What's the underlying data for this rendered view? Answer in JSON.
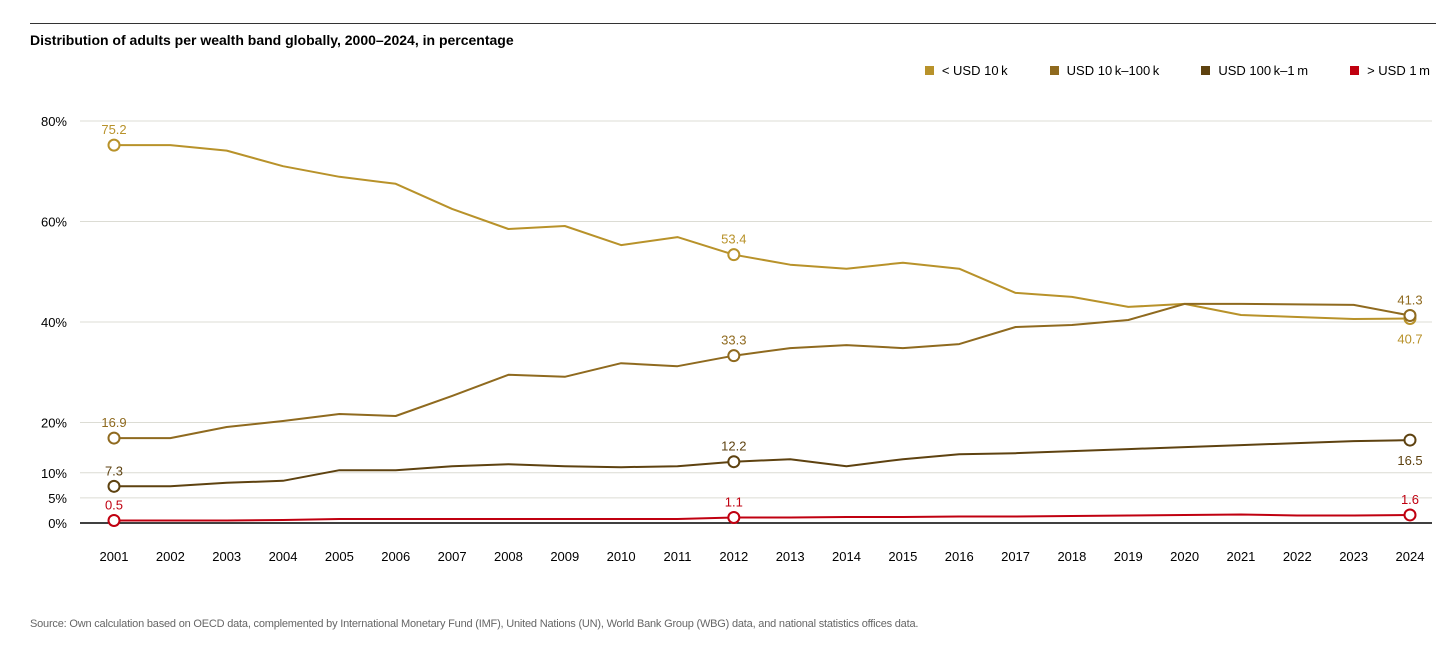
{
  "chart_data": {
    "type": "line",
    "title": "Distribution of adults per wealth band globally, 2000–2024, in percentage",
    "xlabel": "",
    "ylabel": "",
    "x": [
      2001,
      2002,
      2003,
      2004,
      2005,
      2006,
      2007,
      2008,
      2009,
      2010,
      2011,
      2012,
      2013,
      2014,
      2015,
      2016,
      2017,
      2018,
      2019,
      2020,
      2021,
      2022,
      2023,
      2024
    ],
    "ylim": [
      0,
      80
    ],
    "yticks": [
      0,
      5,
      10,
      20,
      40,
      60,
      80
    ],
    "ytick_labels": [
      "0%",
      "5%",
      "10%",
      "20%",
      "40%",
      "60%",
      "80%"
    ],
    "grid": true,
    "legend_position": "top-right",
    "series": [
      {
        "name": "< USD 10 k",
        "color": "#b8922a",
        "values": [
          75.2,
          75.2,
          74.1,
          71.0,
          68.9,
          67.5,
          62.5,
          58.5,
          59.1,
          55.3,
          56.9,
          53.4,
          51.4,
          50.6,
          51.8,
          50.6,
          45.8,
          45.0,
          43.0,
          43.6,
          41.4,
          41.0,
          40.6,
          40.7
        ],
        "labels": [
          {
            "index": 0,
            "text": "75.2",
            "pos": "above"
          },
          {
            "index": 11,
            "text": "53.4",
            "pos": "above"
          },
          {
            "index": 23,
            "text": "40.7",
            "pos": "below"
          }
        ]
      },
      {
        "name": "USD 10 k–100 k",
        "color": "#8f6a1f",
        "values": [
          16.9,
          16.9,
          19.1,
          20.3,
          21.7,
          21.3,
          25.3,
          29.5,
          29.1,
          31.8,
          31.2,
          33.3,
          34.8,
          35.4,
          34.8,
          35.6,
          39.0,
          39.4,
          40.4,
          43.6,
          43.6,
          43.5,
          43.4,
          41.3
        ],
        "labels": [
          {
            "index": 0,
            "text": "16.9",
            "pos": "above"
          },
          {
            "index": 11,
            "text": "33.3",
            "pos": "above"
          },
          {
            "index": 23,
            "text": "41.3",
            "pos": "above"
          }
        ]
      },
      {
        "name": "USD 100 k–1 m",
        "color": "#5e4210",
        "values": [
          7.3,
          7.3,
          8.0,
          8.4,
          10.5,
          10.5,
          11.3,
          11.7,
          11.3,
          11.1,
          11.3,
          12.2,
          12.7,
          11.3,
          12.7,
          13.7,
          13.9,
          14.3,
          14.7,
          15.1,
          15.5,
          15.9,
          16.3,
          16.5
        ],
        "labels": [
          {
            "index": 0,
            "text": "7.3",
            "pos": "above"
          },
          {
            "index": 11,
            "text": "12.2",
            "pos": "above"
          },
          {
            "index": 23,
            "text": "16.5",
            "pos": "below"
          }
        ]
      },
      {
        "name": "> USD 1 m",
        "color": "#c00010",
        "values": [
          0.5,
          0.5,
          0.5,
          0.6,
          0.8,
          0.8,
          0.8,
          0.8,
          0.8,
          0.8,
          0.8,
          1.1,
          1.1,
          1.2,
          1.2,
          1.3,
          1.3,
          1.4,
          1.5,
          1.6,
          1.7,
          1.5,
          1.5,
          1.6
        ],
        "labels": [
          {
            "index": 0,
            "text": "0.5",
            "pos": "above"
          },
          {
            "index": 11,
            "text": "1.1",
            "pos": "above"
          },
          {
            "index": 23,
            "text": "1.6",
            "pos": "above"
          }
        ]
      }
    ]
  },
  "source": "Source: Own calculation based on OECD data, complemented by International Monetary Fund (IMF), United Nations (UN), World Bank Group (WBG) data, and national statistics offices data."
}
